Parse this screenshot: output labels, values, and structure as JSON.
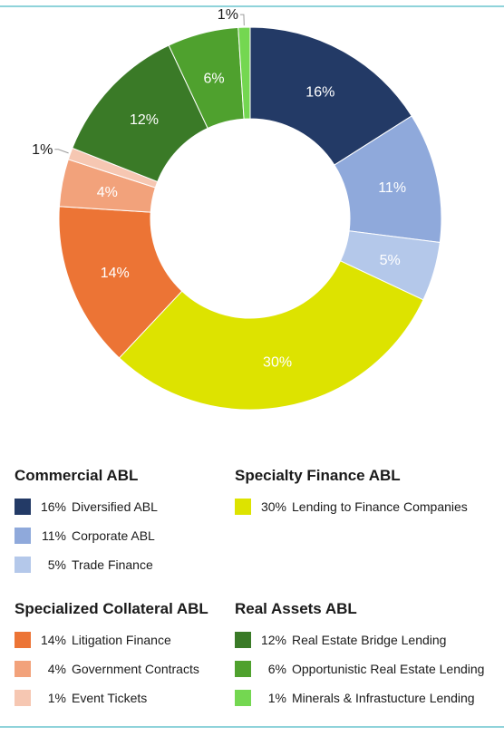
{
  "chart_data": {
    "type": "pie",
    "donut": true,
    "title": "",
    "slices": [
      {
        "label": "Diversified ABL",
        "value": 16,
        "display": "16%",
        "color": "#233a66",
        "group": "Commercial ABL"
      },
      {
        "label": "Corporate ABL",
        "value": 11,
        "display": "11%",
        "color": "#8fa9db",
        "group": "Commercial ABL"
      },
      {
        "label": "Trade Finance",
        "value": 5,
        "display": "5%",
        "color": "#b4c8ea",
        "group": "Commercial ABL"
      },
      {
        "label": "Lending to Finance Companies",
        "value": 30,
        "display": "30%",
        "color": "#dde300",
        "group": "Specialty Finance ABL"
      },
      {
        "label": "Litigation Finance",
        "value": 14,
        "display": "14%",
        "color": "#ec7435",
        "group": "Specialized Collateral ABL"
      },
      {
        "label": "Government Contracts",
        "value": 4,
        "display": "4%",
        "color": "#f2a27b",
        "group": "Specialized Collateral ABL"
      },
      {
        "label": "Event Tickets",
        "value": 1,
        "display": "1%",
        "color": "#f6c7b2",
        "group": "Specialized Collateral ABL"
      },
      {
        "label": "Real Estate Bridge Lending",
        "value": 12,
        "display": "12%",
        "color": "#3a7a27",
        "group": "Real Assets ABL"
      },
      {
        "label": "Opportunistic Real Estate Lending",
        "value": 6,
        "display": "6%",
        "color": "#4fa12e",
        "group": "Real Assets ABL"
      },
      {
        "label": "Minerals & Infrastucture Lending",
        "value": 1,
        "display": "1%",
        "color": "#74d751",
        "group": "Real Assets ABL"
      }
    ]
  },
  "legend": {
    "groups": [
      {
        "title": "Commercial ABL",
        "items": [
          {
            "pct": "16%",
            "label": "Diversified ABL",
            "color": "#233a66"
          },
          {
            "pct": "11%",
            "label": "Corporate ABL",
            "color": "#8fa9db"
          },
          {
            "pct": "5%",
            "label": "Trade Finance",
            "color": "#b4c8ea"
          }
        ]
      },
      {
        "title": "Specialty Finance ABL",
        "items": [
          {
            "pct": "30%",
            "label": "Lending to Finance Companies",
            "color": "#dde300"
          }
        ]
      },
      {
        "title": "Specialized Collateral ABL",
        "items": [
          {
            "pct": "14%",
            "label": "Litigation Finance",
            "color": "#ec7435"
          },
          {
            "pct": "4%",
            "label": "Government Contracts",
            "color": "#f2a27b"
          },
          {
            "pct": "1%",
            "label": "Event Tickets",
            "color": "#f6c7b2"
          }
        ]
      },
      {
        "title": "Real Assets ABL",
        "items": [
          {
            "pct": "12%",
            "label": "Real Estate Bridge Lending",
            "color": "#3a7a27"
          },
          {
            "pct": "6%",
            "label": "Opportunistic Real Estate Lending",
            "color": "#4fa12e"
          },
          {
            "pct": "1%",
            "label": "Minerals & Infrastucture Lending",
            "color": "#74d751"
          }
        ]
      }
    ]
  },
  "colors": {
    "rule": "#8fd3da",
    "background": "#ffffff"
  }
}
